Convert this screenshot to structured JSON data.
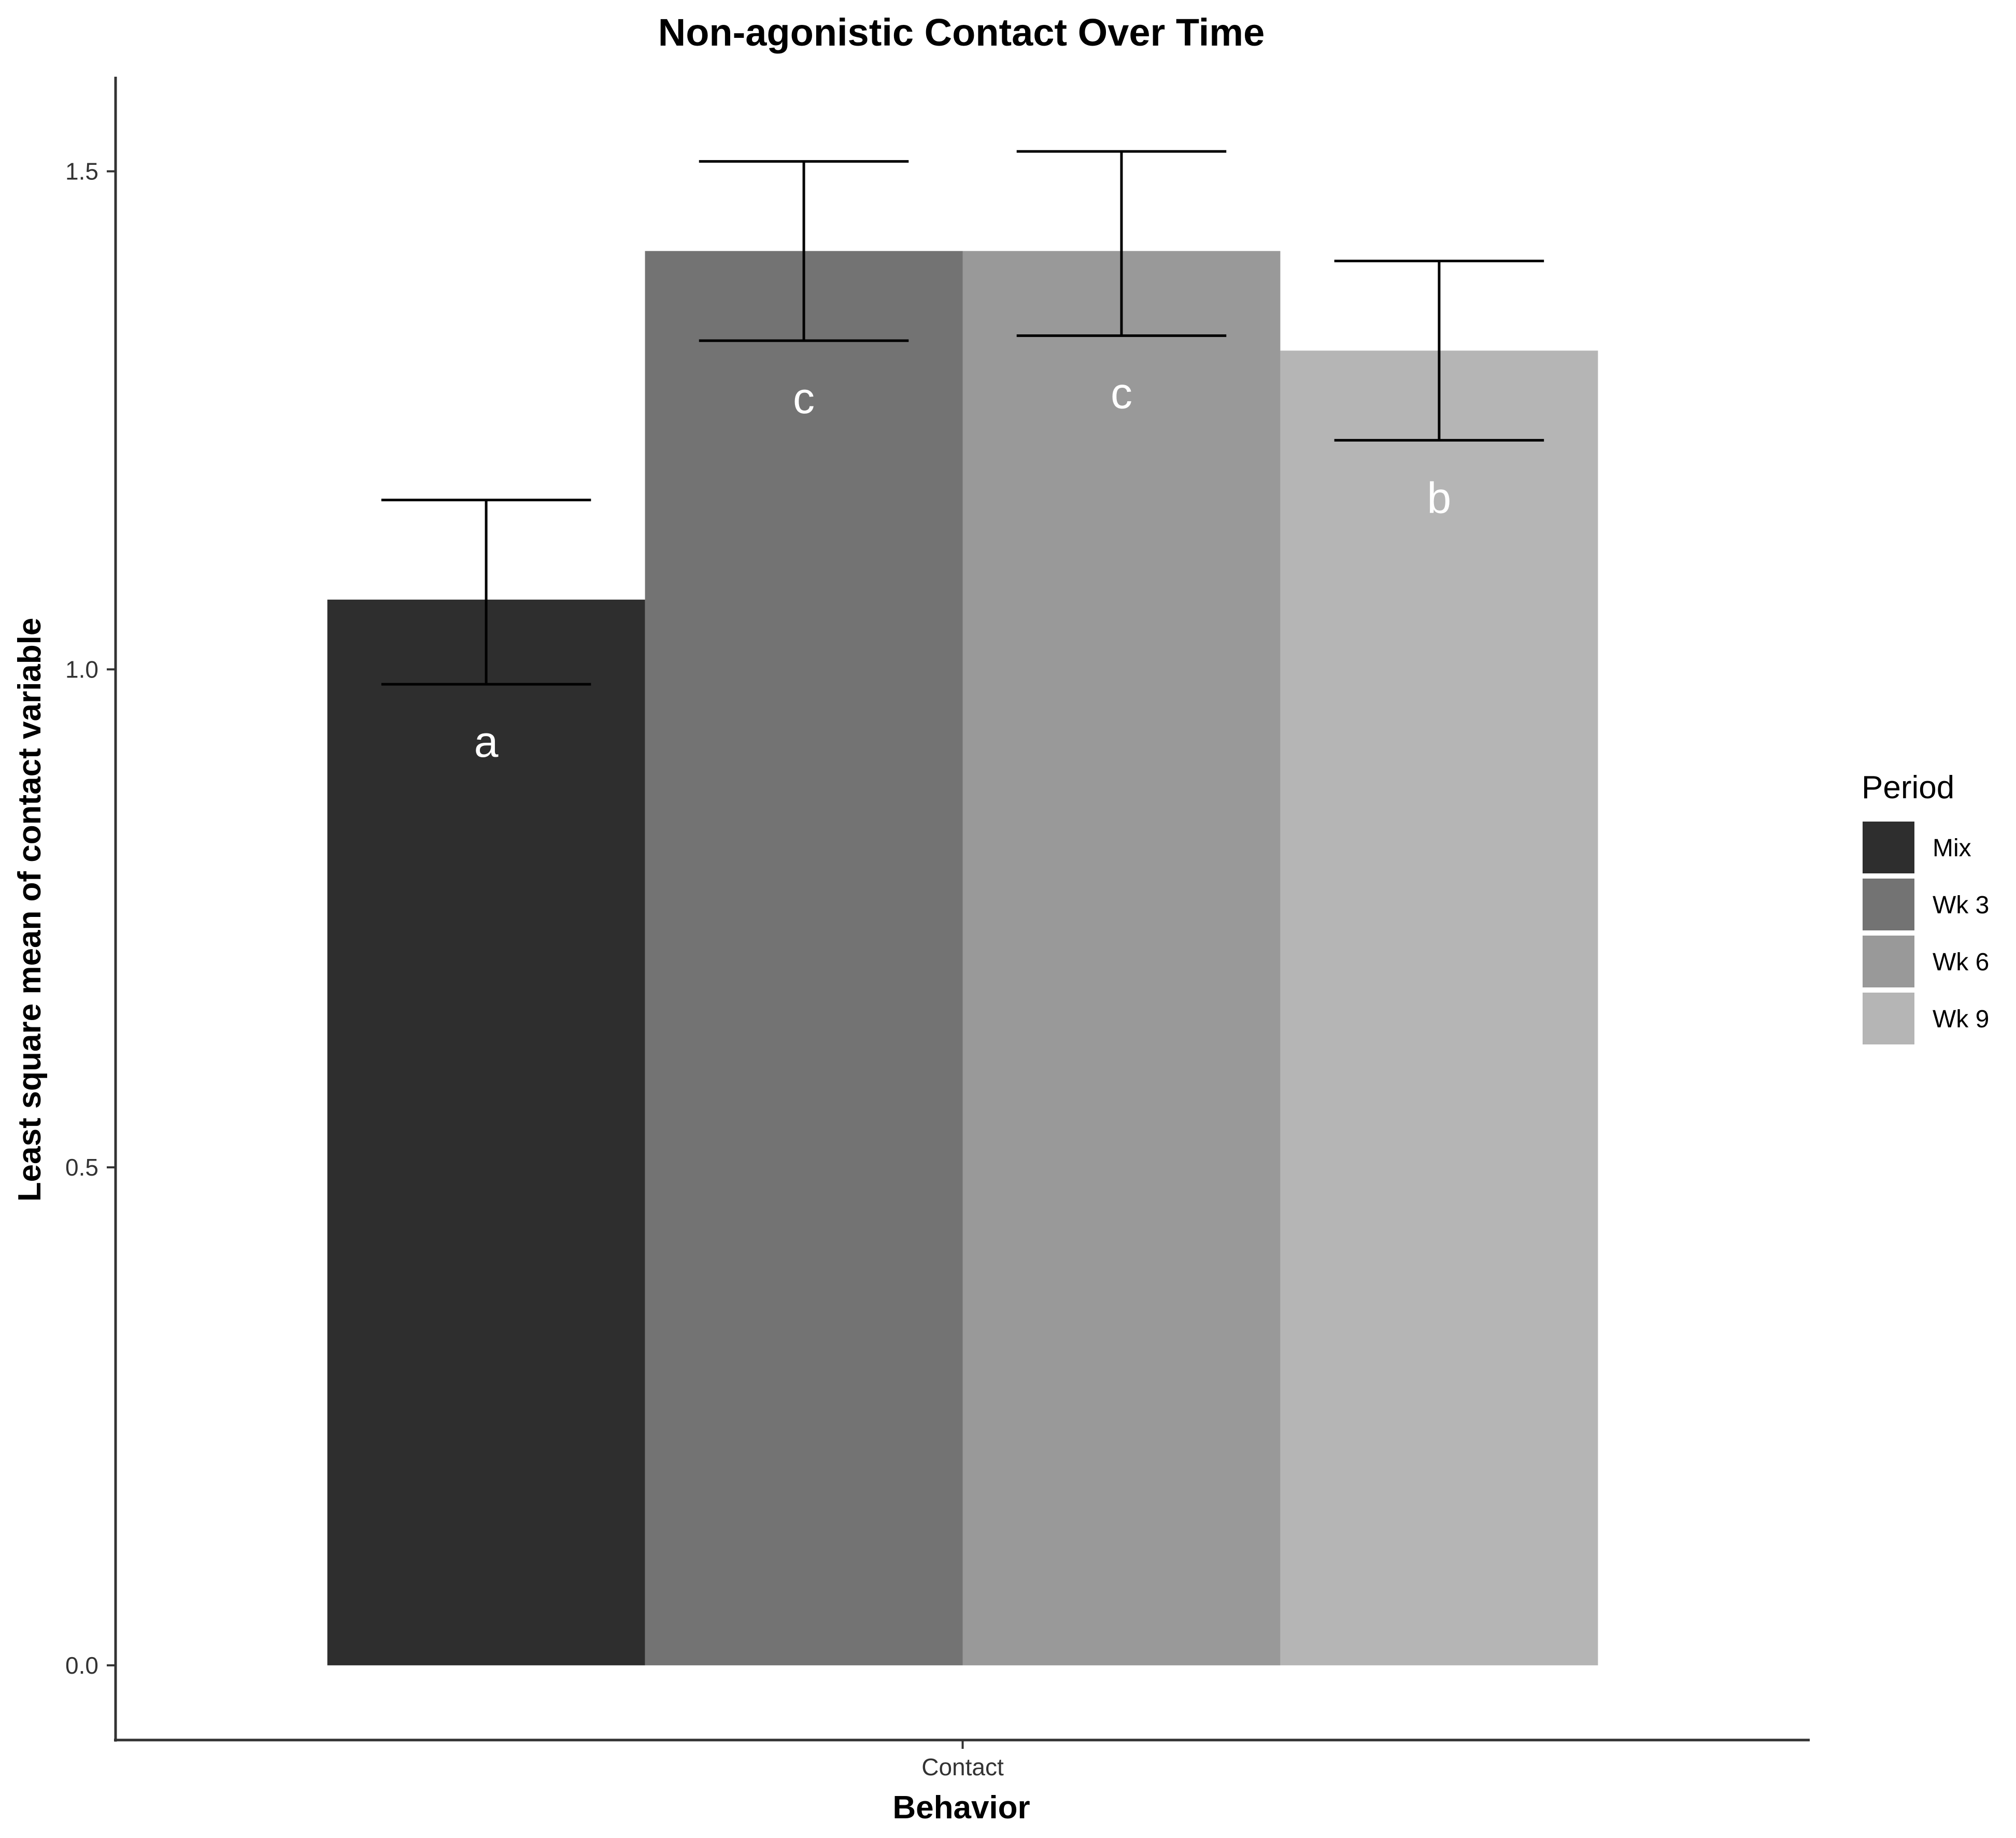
{
  "chart_data": {
    "type": "bar",
    "title": "Non-agonistic Contact Over Time",
    "xlabel": "Behavior",
    "ylabel": "Least square mean of contact variable",
    "categories": [
      "Contact"
    ],
    "ylim": [
      -0.075,
      1.595
    ],
    "yticks": [
      0.0,
      0.5,
      1.0,
      1.5
    ],
    "ytick_labels": [
      "0.0",
      "0.5",
      "1.0",
      "1.5"
    ],
    "grid": false,
    "legend": {
      "title": "Period",
      "position": "right"
    },
    "series": [
      {
        "name": "Mix",
        "values": [
          1.07
        ],
        "error_low": [
          0.985
        ],
        "error_high": [
          1.17
        ],
        "label": "a",
        "color": "#2e2e2e"
      },
      {
        "name": "Wk 3",
        "values": [
          1.42
        ],
        "error_low": [
          1.33
        ],
        "error_high": [
          1.51
        ],
        "label": "c",
        "color": "#737373"
      },
      {
        "name": "Wk 6",
        "values": [
          1.42
        ],
        "error_low": [
          1.335
        ],
        "error_high": [
          1.52
        ],
        "label": "c",
        "color": "#999999"
      },
      {
        "name": "Wk 9",
        "values": [
          1.32
        ],
        "error_low": [
          1.23
        ],
        "error_high": [
          1.41
        ],
        "label": "b",
        "color": "#b5b5b5"
      }
    ]
  }
}
